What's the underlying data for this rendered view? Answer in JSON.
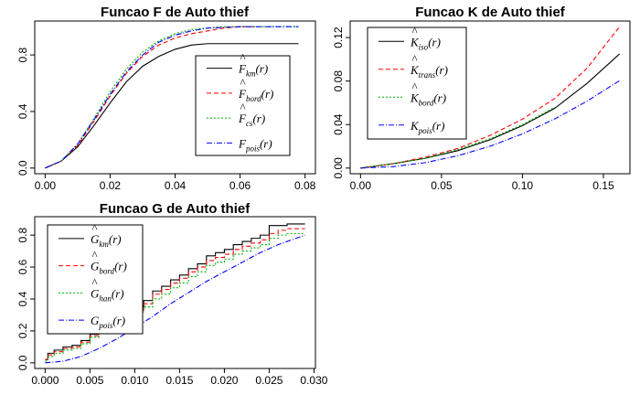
{
  "chart_data": [
    {
      "type": "line",
      "title": "Funcao F de Auto thief",
      "xlabel": "",
      "ylabel": "",
      "xlim": [
        0,
        0.08
      ],
      "ylim": [
        0,
        1.0
      ],
      "xticks": [
        "0.00",
        "0.02",
        "0.04",
        "0.06",
        "0.08"
      ],
      "yticks": [
        "0.0",
        "0.4",
        "0.8"
      ],
      "legend_position": "bottom-right",
      "series": [
        {
          "name": "F̂km(r)",
          "base": "F",
          "sub": "km",
          "hat": true,
          "color": "#000000",
          "dash": "",
          "x": [
            0,
            0.005,
            0.01,
            0.015,
            0.02,
            0.025,
            0.03,
            0.035,
            0.04,
            0.045,
            0.05,
            0.055,
            0.06,
            0.065,
            0.07,
            0.075,
            0.078
          ],
          "y": [
            0,
            0.05,
            0.15,
            0.3,
            0.46,
            0.61,
            0.72,
            0.79,
            0.84,
            0.87,
            0.88,
            0.88,
            0.88,
            0.88,
            0.88,
            0.88,
            0.88
          ]
        },
        {
          "name": "F̂bord(r)",
          "base": "F",
          "sub": "bord",
          "hat": true,
          "color": "#ff0000",
          "dash": "5,3",
          "x": [
            0,
            0.005,
            0.01,
            0.015,
            0.02,
            0.025,
            0.03,
            0.035,
            0.04,
            0.045,
            0.05,
            0.055,
            0.06,
            0.065
          ],
          "y": [
            0,
            0.05,
            0.16,
            0.33,
            0.51,
            0.67,
            0.79,
            0.87,
            0.92,
            0.95,
            0.97,
            0.99,
            1.0,
            1.0
          ]
        },
        {
          "name": "F̂cs(r)",
          "base": "F",
          "sub": "cs",
          "hat": true,
          "color": "#00b000",
          "dash": "2,2",
          "x": [
            0,
            0.005,
            0.01,
            0.015,
            0.02,
            0.025,
            0.03,
            0.035,
            0.04,
            0.045,
            0.05,
            0.055,
            0.06,
            0.065,
            0.07,
            0.075,
            0.078
          ],
          "y": [
            0,
            0.05,
            0.17,
            0.35,
            0.54,
            0.7,
            0.82,
            0.9,
            0.95,
            0.98,
            0.99,
            1.0,
            1.0,
            1.0,
            1.0,
            1.0,
            1.0
          ]
        },
        {
          "name": "Fpois(r)",
          "base": "F",
          "sub": "pois",
          "hat": false,
          "color": "#0000ff",
          "dash": "6,2,1,2",
          "x": [
            0,
            0.005,
            0.01,
            0.015,
            0.02,
            0.025,
            0.03,
            0.035,
            0.04,
            0.045,
            0.05,
            0.055,
            0.06,
            0.065,
            0.07,
            0.075,
            0.078
          ],
          "y": [
            0,
            0.05,
            0.17,
            0.34,
            0.52,
            0.68,
            0.8,
            0.89,
            0.94,
            0.97,
            0.99,
            0.995,
            1.0,
            1.0,
            1.0,
            1.0,
            1.0
          ]
        }
      ]
    },
    {
      "type": "line",
      "title": "Funcao K de Auto thief",
      "xlabel": "",
      "ylabel": "",
      "xlim": [
        0,
        0.16
      ],
      "ylim": [
        0,
        0.13
      ],
      "xticks": [
        "0.00",
        "0.05",
        "0.10",
        "0.15"
      ],
      "yticks": [
        "0.00",
        "0.04",
        "0.08",
        "0.12"
      ],
      "legend_position": "top-left",
      "series": [
        {
          "name": "K̂iso(r)",
          "base": "K",
          "sub": "iso",
          "hat": true,
          "color": "#000000",
          "dash": "",
          "x": [
            0,
            0.02,
            0.04,
            0.06,
            0.08,
            0.1,
            0.12,
            0.14,
            0.16
          ],
          "y": [
            0,
            0.004,
            0.009,
            0.016,
            0.026,
            0.039,
            0.055,
            0.078,
            0.105
          ]
        },
        {
          "name": "K̂trans(r)",
          "base": "K",
          "sub": "trans",
          "hat": true,
          "color": "#ff0000",
          "dash": "5,3",
          "x": [
            0,
            0.02,
            0.04,
            0.06,
            0.08,
            0.1,
            0.12,
            0.14,
            0.16
          ],
          "y": [
            0,
            0.004,
            0.01,
            0.018,
            0.03,
            0.045,
            0.064,
            0.092,
            0.13
          ]
        },
        {
          "name": "K̂bord(r)",
          "base": "K",
          "sub": "bord",
          "hat": true,
          "color": "#00b000",
          "dash": "2,2",
          "x": [
            0,
            0.02,
            0.04,
            0.06,
            0.08,
            0.1,
            0.12
          ],
          "y": [
            0,
            0.004,
            0.009,
            0.017,
            0.027,
            0.04,
            0.056
          ]
        },
        {
          "name": "Kpois(r)",
          "base": "K",
          "sub": "pois",
          "hat": false,
          "color": "#0000ff",
          "dash": "6,2,1,2",
          "x": [
            0,
            0.02,
            0.04,
            0.06,
            0.08,
            0.1,
            0.12,
            0.14,
            0.16
          ],
          "y": [
            0,
            0.0013,
            0.005,
            0.0113,
            0.0201,
            0.0314,
            0.0452,
            0.0616,
            0.0804
          ]
        }
      ]
    },
    {
      "type": "line",
      "title": "Funcao G de Auto thief",
      "xlabel": "",
      "ylabel": "",
      "xlim": [
        0,
        0.029
      ],
      "ylim": [
        0,
        0.88
      ],
      "xticks": [
        "0.000",
        "0.005",
        "0.010",
        "0.015",
        "0.020",
        "0.025",
        "0.030"
      ],
      "yticks": [
        "0.0",
        "0.2",
        "0.4",
        "0.6",
        "0.8"
      ],
      "legend_position": "top-left",
      "series": [
        {
          "name": "Ĝkm(r)",
          "base": "G",
          "sub": "km",
          "hat": true,
          "color": "#000000",
          "dash": "",
          "step": true,
          "x": [
            0,
            0.0003,
            0.001,
            0.002,
            0.003,
            0.004,
            0.005,
            0.006,
            0.007,
            0.0085,
            0.01,
            0.011,
            0.012,
            0.013,
            0.014,
            0.015,
            0.016,
            0.017,
            0.018,
            0.019,
            0.02,
            0.021,
            0.022,
            0.023,
            0.024,
            0.025,
            0.026,
            0.027,
            0.028,
            0.029
          ],
          "y": [
            0.02,
            0.06,
            0.08,
            0.1,
            0.11,
            0.14,
            0.18,
            0.21,
            0.28,
            0.34,
            0.35,
            0.39,
            0.45,
            0.48,
            0.52,
            0.55,
            0.59,
            0.62,
            0.67,
            0.69,
            0.71,
            0.74,
            0.76,
            0.78,
            0.8,
            0.86,
            0.86,
            0.87,
            0.87,
            0.87
          ]
        },
        {
          "name": "Ĝbord(r)",
          "base": "G",
          "sub": "bord",
          "hat": true,
          "color": "#ff0000",
          "dash": "5,3",
          "step": true,
          "x": [
            0,
            0.0003,
            0.001,
            0.002,
            0.003,
            0.004,
            0.005,
            0.006,
            0.007,
            0.0085,
            0.01,
            0.011,
            0.012,
            0.013,
            0.014,
            0.015,
            0.016,
            0.017,
            0.018,
            0.019,
            0.02,
            0.021,
            0.022,
            0.023,
            0.024,
            0.025,
            0.026,
            0.027,
            0.028,
            0.029
          ],
          "y": [
            0.02,
            0.05,
            0.07,
            0.09,
            0.1,
            0.13,
            0.17,
            0.2,
            0.26,
            0.32,
            0.33,
            0.37,
            0.43,
            0.46,
            0.5,
            0.53,
            0.57,
            0.6,
            0.64,
            0.66,
            0.68,
            0.71,
            0.73,
            0.75,
            0.77,
            0.81,
            0.83,
            0.84,
            0.84,
            0.84
          ]
        },
        {
          "name": "Ĝhan(r)",
          "base": "G",
          "sub": "han",
          "hat": true,
          "color": "#00b000",
          "dash": "2,2",
          "step": true,
          "x": [
            0,
            0.0003,
            0.001,
            0.002,
            0.003,
            0.004,
            0.005,
            0.006,
            0.007,
            0.0085,
            0.01,
            0.011,
            0.012,
            0.013,
            0.014,
            0.015,
            0.016,
            0.017,
            0.018,
            0.019,
            0.02,
            0.021,
            0.022,
            0.023,
            0.024,
            0.025,
            0.026,
            0.027,
            0.028,
            0.029
          ],
          "y": [
            0.01,
            0.04,
            0.06,
            0.08,
            0.09,
            0.12,
            0.16,
            0.19,
            0.25,
            0.31,
            0.32,
            0.35,
            0.4,
            0.43,
            0.47,
            0.5,
            0.54,
            0.57,
            0.61,
            0.63,
            0.65,
            0.68,
            0.7,
            0.72,
            0.74,
            0.78,
            0.8,
            0.81,
            0.81,
            0.81
          ]
        },
        {
          "name": "Gpois(r)",
          "base": "G",
          "sub": "pois",
          "hat": false,
          "color": "#0000ff",
          "dash": "6,2,1,2",
          "x": [
            0,
            0.002,
            0.004,
            0.006,
            0.008,
            0.01,
            0.012,
            0.014,
            0.016,
            0.018,
            0.02,
            0.022,
            0.024,
            0.026,
            0.028,
            0.029
          ],
          "y": [
            0,
            0.01,
            0.04,
            0.09,
            0.15,
            0.22,
            0.29,
            0.37,
            0.44,
            0.51,
            0.57,
            0.63,
            0.69,
            0.74,
            0.78,
            0.8
          ]
        }
      ]
    }
  ]
}
